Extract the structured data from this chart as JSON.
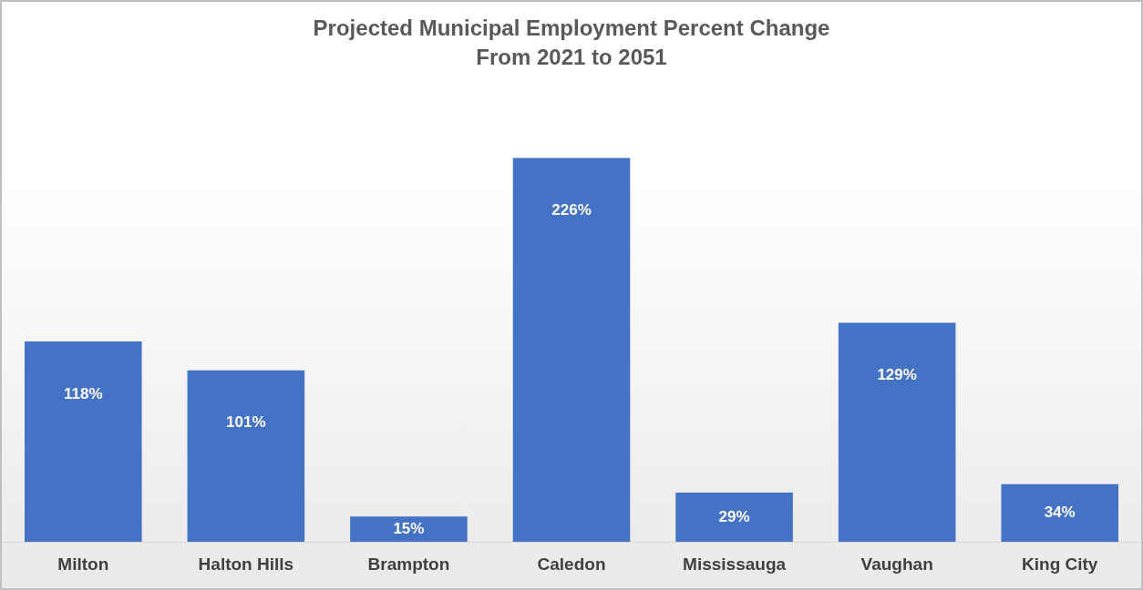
{
  "chart_data": {
    "type": "bar",
    "title": "Projected Municipal Employment Percent Change\nFrom 2021 to 2051",
    "categories": [
      "Milton",
      "Halton Hills",
      "Brampton",
      "Caledon",
      "Mississauga",
      "Vaughan",
      "King City"
    ],
    "values": [
      118,
      101,
      15,
      226,
      29,
      129,
      34
    ],
    "value_labels": [
      "118%",
      "101%",
      "15%",
      "226%",
      "29%",
      "129%",
      "34%"
    ],
    "color": "#4472c4",
    "grid": false,
    "legend": false,
    "tick_labels": "x"
  }
}
